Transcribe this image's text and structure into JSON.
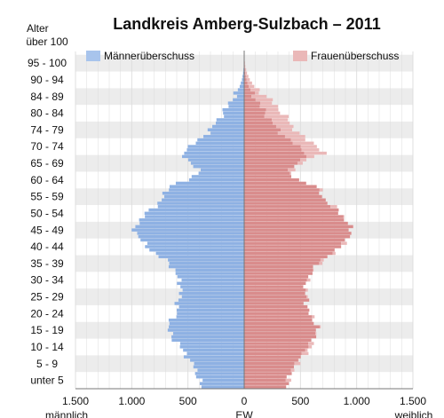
{
  "chart_data": {
    "type": "bar",
    "title": "Landkreis Amberg-Sulzbach – 2011",
    "y_axis_title": "Alter",
    "x_axis_label_center": "EW",
    "x_axis_label_left": "männlich",
    "x_axis_label_right": "weiblich",
    "x_range": [
      -1500,
      1500
    ],
    "x_ticks": [
      -1500,
      -1000,
      -500,
      0,
      500,
      1000,
      1500
    ],
    "x_tick_labels": [
      "1.500",
      "1.000",
      "500",
      "0",
      "500",
      "1.000",
      "1.500"
    ],
    "age_group_labels": [
      "unter 5",
      "5 - 9",
      "10 - 14",
      "15 - 19",
      "20 - 24",
      "25 - 29",
      "30 - 34",
      "35 - 39",
      "40 - 44",
      "45 - 49",
      "50 - 54",
      "55 - 59",
      "60 - 64",
      "65 - 69",
      "70 - 74",
      "74 - 79",
      "80 - 84",
      "84 - 89",
      "90 - 94",
      "95 - 100",
      "über 100"
    ],
    "legend": [
      {
        "label": "Männerüberschuss",
        "color": "#a8c4ec"
      },
      {
        "label": "Frauenüberschuss",
        "color": "#eab8b8"
      }
    ],
    "colors": {
      "male": "#8eb1e3",
      "female": "#d98c8c",
      "male_surplus": "#a8c4ec",
      "female_surplus": "#eab8b8",
      "stripe": "#ececec"
    },
    "age_min": 0,
    "age_max": 100,
    "male_anchors": [
      [
        0,
        380
      ],
      [
        2,
        400
      ],
      [
        4,
        420
      ],
      [
        6,
        440
      ],
      [
        8,
        490
      ],
      [
        10,
        520
      ],
      [
        12,
        570
      ],
      [
        14,
        620
      ],
      [
        16,
        650
      ],
      [
        18,
        690
      ],
      [
        20,
        640
      ],
      [
        22,
        600
      ],
      [
        24,
        600
      ],
      [
        26,
        580
      ],
      [
        28,
        570
      ],
      [
        30,
        560
      ],
      [
        32,
        580
      ],
      [
        34,
        610
      ],
      [
        36,
        640
      ],
      [
        38,
        700
      ],
      [
        40,
        800
      ],
      [
        42,
        860
      ],
      [
        44,
        920
      ],
      [
        46,
        960
      ],
      [
        48,
        980
      ],
      [
        50,
        920
      ],
      [
        52,
        870
      ],
      [
        54,
        800
      ],
      [
        56,
        730
      ],
      [
        58,
        700
      ],
      [
        60,
        680
      ],
      [
        62,
        500
      ],
      [
        64,
        400
      ],
      [
        66,
        440
      ],
      [
        68,
        500
      ],
      [
        70,
        560
      ],
      [
        72,
        480
      ],
      [
        74,
        400
      ],
      [
        76,
        330
      ],
      [
        78,
        280
      ],
      [
        80,
        230
      ],
      [
        82,
        190
      ],
      [
        84,
        150
      ],
      [
        86,
        110
      ],
      [
        88,
        70
      ],
      [
        90,
        40
      ],
      [
        92,
        20
      ],
      [
        94,
        10
      ],
      [
        96,
        4
      ],
      [
        98,
        2
      ],
      [
        100,
        1
      ]
    ],
    "female_anchors": [
      [
        0,
        380
      ],
      [
        2,
        400
      ],
      [
        4,
        420
      ],
      [
        6,
        450
      ],
      [
        8,
        500
      ],
      [
        10,
        550
      ],
      [
        12,
        590
      ],
      [
        14,
        630
      ],
      [
        16,
        630
      ],
      [
        18,
        660
      ],
      [
        20,
        620
      ],
      [
        22,
        580
      ],
      [
        24,
        560
      ],
      [
        26,
        560
      ],
      [
        28,
        550
      ],
      [
        30,
        550
      ],
      [
        32,
        560
      ],
      [
        34,
        600
      ],
      [
        36,
        640
      ],
      [
        38,
        700
      ],
      [
        40,
        800
      ],
      [
        42,
        860
      ],
      [
        44,
        910
      ],
      [
        46,
        960
      ],
      [
        48,
        940
      ],
      [
        50,
        900
      ],
      [
        52,
        860
      ],
      [
        54,
        800
      ],
      [
        56,
        720
      ],
      [
        58,
        680
      ],
      [
        60,
        650
      ],
      [
        62,
        480
      ],
      [
        64,
        400
      ],
      [
        66,
        470
      ],
      [
        68,
        560
      ],
      [
        70,
        700
      ],
      [
        72,
        660
      ],
      [
        74,
        560
      ],
      [
        76,
        480
      ],
      [
        78,
        430
      ],
      [
        80,
        390
      ],
      [
        82,
        340
      ],
      [
        84,
        290
      ],
      [
        86,
        230
      ],
      [
        88,
        160
      ],
      [
        90,
        90
      ],
      [
        92,
        50
      ],
      [
        94,
        25
      ],
      [
        96,
        10
      ],
      [
        98,
        4
      ],
      [
        100,
        2
      ]
    ]
  }
}
